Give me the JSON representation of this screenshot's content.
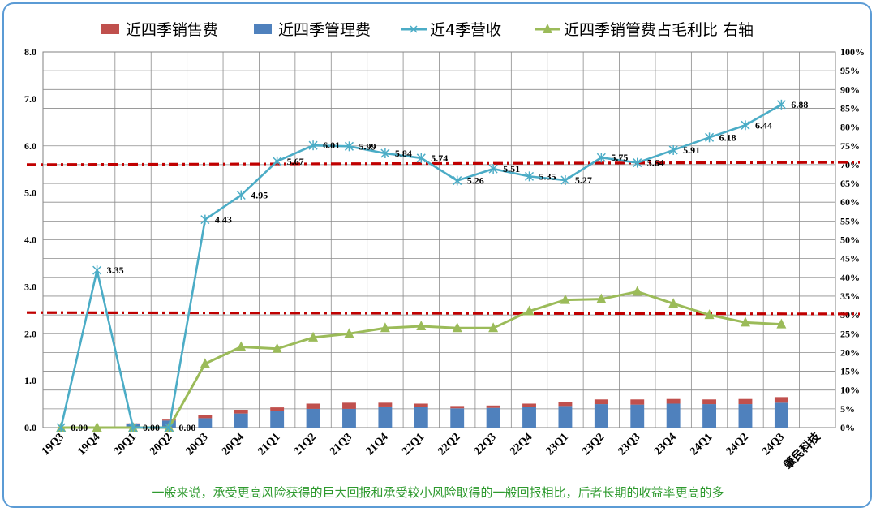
{
  "chart_data": {
    "type": "bar",
    "categories": [
      "19Q3",
      "19Q4",
      "20Q1",
      "20Q2",
      "20Q3",
      "20Q4",
      "21Q1",
      "21Q2",
      "21Q3",
      "21Q4",
      "22Q1",
      "22Q2",
      "22Q3",
      "22Q4",
      "23Q1",
      "23Q2",
      "23Q3",
      "23Q4",
      "24Q1",
      "24Q2",
      "24Q3"
    ],
    "extra_category_label": "肇民科技",
    "series": [
      {
        "name": "近四季销售费",
        "kind": "stacked-bar",
        "axis": "left",
        "color": "#c0504d",
        "values": [
          0,
          0,
          0.02,
          0.02,
          0.06,
          0.08,
          0.07,
          0.11,
          0.13,
          0.08,
          0.07,
          0.05,
          0.05,
          0.07,
          0.09,
          0.1,
          0.11,
          0.1,
          0.1,
          0.11,
          0.12
        ]
      },
      {
        "name": "近四季管理费",
        "kind": "stacked-bar",
        "axis": "left",
        "color": "#4f81bd",
        "values": [
          0,
          0,
          0.07,
          0.15,
          0.2,
          0.3,
          0.36,
          0.4,
          0.4,
          0.45,
          0.44,
          0.41,
          0.42,
          0.44,
          0.46,
          0.5,
          0.49,
          0.51,
          0.5,
          0.5,
          0.53
        ]
      },
      {
        "name": "近4季营收",
        "kind": "line",
        "axis": "left",
        "color": "#4bacc6",
        "marker": "star",
        "values": [
          0,
          3.35,
          0,
          0,
          4.43,
          4.95,
          5.67,
          6.01,
          5.99,
          5.84,
          5.74,
          5.26,
          5.51,
          5.35,
          5.27,
          5.75,
          5.64,
          5.91,
          6.18,
          6.44,
          6.88
        ],
        "labels": [
          "0.00",
          "3.35",
          "0.00",
          "0.00",
          "4.43",
          "4.95",
          "5.67",
          "6.01",
          "5.99",
          "5.84",
          "5.74",
          "5.26",
          "5.51",
          "5.35",
          "5.27",
          "5.75",
          "5.64",
          "5.91",
          "6.18",
          "6.44",
          "6.88"
        ]
      },
      {
        "name": "近四季销管费占毛利比  右轴",
        "kind": "line",
        "axis": "right",
        "color": "#9bbb59",
        "marker": "triangle",
        "values": [
          0,
          0,
          0,
          0,
          0.17,
          0.215,
          0.21,
          0.24,
          0.25,
          0.265,
          0.27,
          0.265,
          0.265,
          0.31,
          0.34,
          0.342,
          0.362,
          0.33,
          0.3,
          0.28,
          0.275
        ]
      }
    ],
    "reference_lines": [
      {
        "axis": "left",
        "value": 5.6,
        "value_end": 5.65,
        "color": "#c00000",
        "style": "dash-dot"
      },
      {
        "axis": "left",
        "value": 2.45,
        "value_end": 2.42,
        "color": "#c00000",
        "style": "dash-dot"
      }
    ],
    "ylim": [
      0,
      8
    ],
    "yticks": [
      "0.0",
      "1.0",
      "2.0",
      "3.0",
      "4.0",
      "5.0",
      "6.0",
      "7.0",
      "8.0"
    ],
    "y2lim": [
      0,
      1
    ],
    "y2ticks": [
      "0%",
      "5%",
      "10%",
      "15%",
      "20%",
      "25%",
      "30%",
      "35%",
      "40%",
      "45%",
      "50%",
      "55%",
      "60%",
      "65%",
      "70%",
      "75%",
      "80%",
      "85%",
      "90%",
      "95%",
      "100%"
    ],
    "grid": true,
    "legend_position": "top"
  },
  "note": "一般来说，承受更高风险获得的巨大回报和承受较小风险取得的一般回报相比，后者长期的收益率更高的多"
}
